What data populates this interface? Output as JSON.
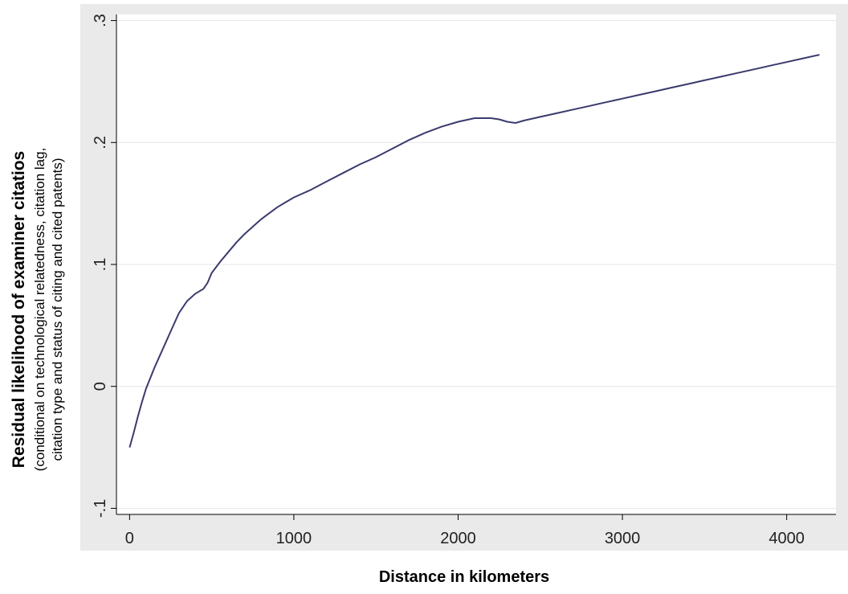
{
  "chart_data": {
    "type": "line",
    "title": "",
    "xlabel": "Distance in kilometers",
    "ylabel": "Residual likelihood of examiner citatios",
    "ylabel_sub": [
      "(conditional on technological relatedness, citation lag,",
      "citation type and status of citing and cited patents)"
    ],
    "xlim": [
      -80,
      4300
    ],
    "ylim": [
      -0.105,
      0.305
    ],
    "x_ticks": [
      0,
      1000,
      2000,
      3000,
      4000
    ],
    "x_tick_labels": [
      "0",
      "1000",
      "2000",
      "3000",
      "4000"
    ],
    "y_ticks": [
      -0.1,
      0,
      0.1,
      0.2,
      0.3
    ],
    "y_tick_labels": [
      "-.1",
      "0",
      ".1",
      ".2",
      ".3"
    ],
    "grid": true,
    "colors": {
      "line": "#3a3a6e",
      "plot_region": "#ffffff",
      "outer": "#eaeaea",
      "grid": "#e6e6e6"
    },
    "series": [
      {
        "x": [
          0,
          25,
          50,
          75,
          100,
          150,
          200,
          250,
          300,
          350,
          400,
          450,
          475,
          500,
          550,
          600,
          650,
          700,
          750,
          800,
          850,
          900,
          950,
          1000,
          1100,
          1200,
          1300,
          1400,
          1500,
          1600,
          1700,
          1800,
          1900,
          2000,
          2100,
          2200,
          2250,
          2300,
          2350,
          2400,
          2500,
          2600,
          2700,
          2800,
          2900,
          3000,
          3100,
          3200,
          3300,
          3400,
          3500,
          3600,
          3700,
          3800,
          3900,
          4000,
          4100,
          4200
        ],
        "y": [
          -0.05,
          -0.038,
          -0.025,
          -0.013,
          -0.002,
          0.015,
          0.03,
          0.045,
          0.06,
          0.07,
          0.076,
          0.08,
          0.085,
          0.093,
          0.102,
          0.11,
          0.118,
          0.125,
          0.131,
          0.137,
          0.142,
          0.147,
          0.151,
          0.155,
          0.161,
          0.168,
          0.175,
          0.182,
          0.188,
          0.195,
          0.202,
          0.208,
          0.213,
          0.217,
          0.22,
          0.22,
          0.219,
          0.217,
          0.216,
          0.218,
          0.221,
          0.224,
          0.227,
          0.23,
          0.233,
          0.236,
          0.239,
          0.242,
          0.245,
          0.248,
          0.251,
          0.254,
          0.257,
          0.26,
          0.263,
          0.266,
          0.269,
          0.272
        ]
      }
    ]
  }
}
